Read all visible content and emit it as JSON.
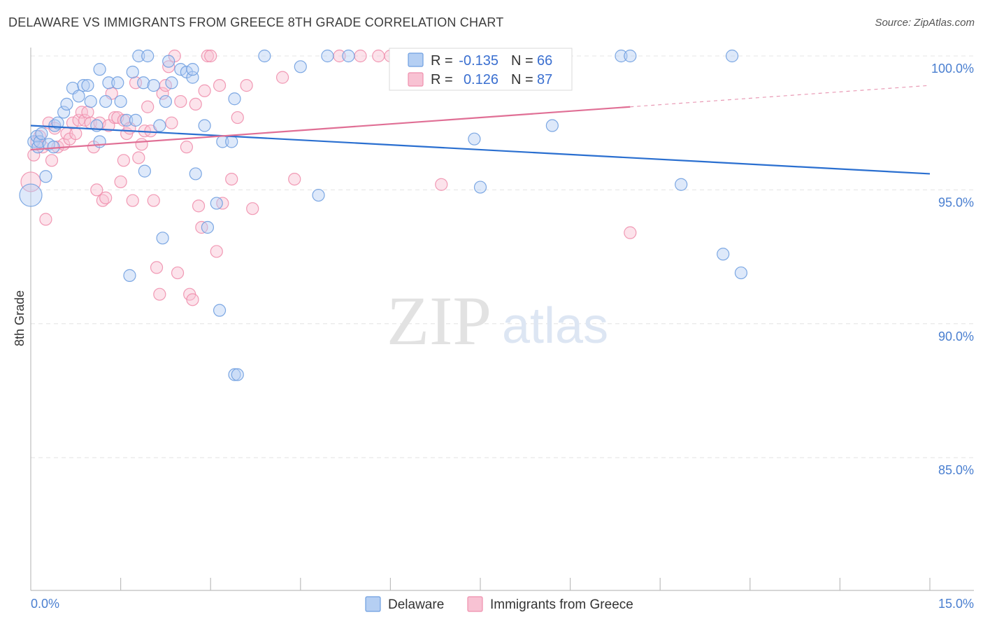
{
  "title": "DELAWARE VS IMMIGRANTS FROM GREECE 8TH GRADE CORRELATION CHART",
  "source": "Source: ZipAtlas.com",
  "watermark": {
    "zip": "ZIP",
    "atlas": "atlas"
  },
  "colors": {
    "delaware": "#6f9fe0",
    "delaware_line": "#2a6fd0",
    "greece": "#ef8fad",
    "greece_line": "#e06f95",
    "tick_label": "#4a7fd0"
  },
  "legend": {
    "items": [
      {
        "r_label": "R =",
        "r_value": "-0.135",
        "n_label": "N =",
        "n_value": "66"
      },
      {
        "r_label": "R =",
        "r_value": "0.126",
        "n_label": "N =",
        "n_value": "87"
      }
    ]
  },
  "chart_data": {
    "type": "scatter",
    "title": "DELAWARE VS IMMIGRANTS FROM GREECE 8TH GRADE CORRELATION CHART",
    "xlabel": "",
    "ylabel": "8th Grade",
    "xlim": [
      0,
      15
    ],
    "ylim": [
      80.5,
      100.5
    ],
    "x_tick_labels": [
      "0.0%",
      "15.0%"
    ],
    "y_ticks": [
      85,
      90,
      95,
      100
    ],
    "y_tick_labels": [
      "85.0%",
      "90.0%",
      "95.0%",
      "100.0%"
    ],
    "grid": true,
    "legend_position": "top-center",
    "series": [
      {
        "name": "Delaware",
        "stats": {
          "R": -0.135,
          "N": 66
        },
        "trend": {
          "x0": 0,
          "y0": 97.4,
          "x1": 15,
          "y1": 95.6
        },
        "points": [
          [
            0.0,
            94.8
          ],
          [
            0.05,
            96.8
          ],
          [
            0.1,
            97.0
          ],
          [
            0.12,
            96.6
          ],
          [
            0.15,
            96.8
          ],
          [
            0.18,
            97.1
          ],
          [
            0.25,
            95.5
          ],
          [
            0.3,
            96.7
          ],
          [
            0.38,
            96.6
          ],
          [
            0.4,
            97.4
          ],
          [
            0.45,
            97.5
          ],
          [
            0.55,
            97.9
          ],
          [
            0.6,
            98.2
          ],
          [
            0.7,
            98.8
          ],
          [
            0.8,
            98.5
          ],
          [
            0.88,
            98.9
          ],
          [
            0.95,
            98.9
          ],
          [
            1.0,
            98.3
          ],
          [
            1.1,
            97.4
          ],
          [
            1.15,
            96.8
          ],
          [
            1.15,
            99.5
          ],
          [
            1.25,
            98.3
          ],
          [
            1.3,
            99.0
          ],
          [
            1.45,
            99.0
          ],
          [
            1.5,
            98.3
          ],
          [
            1.6,
            97.6
          ],
          [
            1.65,
            91.8
          ],
          [
            1.7,
            99.4
          ],
          [
            1.75,
            97.6
          ],
          [
            1.8,
            100.0
          ],
          [
            1.88,
            99.0
          ],
          [
            1.95,
            100.0
          ],
          [
            1.9,
            95.7
          ],
          [
            2.05,
            98.9
          ],
          [
            2.15,
            97.4
          ],
          [
            2.2,
            93.2
          ],
          [
            2.25,
            98.3
          ],
          [
            2.3,
            99.8
          ],
          [
            2.35,
            99.0
          ],
          [
            2.5,
            99.5
          ],
          [
            2.6,
            99.4
          ],
          [
            2.7,
            99.2
          ],
          [
            2.7,
            99.5
          ],
          [
            2.75,
            95.6
          ],
          [
            2.9,
            97.4
          ],
          [
            2.95,
            93.6
          ],
          [
            3.1,
            94.5
          ],
          [
            3.15,
            90.5
          ],
          [
            3.2,
            96.8
          ],
          [
            3.35,
            96.8
          ],
          [
            3.4,
            98.4
          ],
          [
            3.4,
            88.1
          ],
          [
            3.45,
            88.1
          ],
          [
            3.9,
            100.0
          ],
          [
            4.5,
            99.6
          ],
          [
            4.8,
            94.8
          ],
          [
            4.95,
            100.0
          ],
          [
            5.3,
            100.0
          ],
          [
            7.4,
            96.9
          ],
          [
            7.5,
            95.1
          ],
          [
            8.7,
            97.4
          ],
          [
            9.85,
            100.0
          ],
          [
            10.0,
            100.0
          ],
          [
            10.85,
            95.2
          ],
          [
            11.7,
            100.0
          ],
          [
            11.55,
            92.6
          ],
          [
            11.85,
            91.9
          ]
        ]
      },
      {
        "name": "Immigrants from Greece",
        "stats": {
          "R": 0.126,
          "N": 87
        },
        "trend": {
          "x0": 0,
          "y0": 96.5,
          "x1": 10.0,
          "y1": 98.1
        },
        "trend_extension": {
          "x0": 10.0,
          "y0": 98.1,
          "x1": 15,
          "y1": 98.9
        },
        "points": [
          [
            0.0,
            95.3
          ],
          [
            0.05,
            96.3
          ],
          [
            0.1,
            96.8
          ],
          [
            0.15,
            97.0
          ],
          [
            0.2,
            96.6
          ],
          [
            0.25,
            93.9
          ],
          [
            0.3,
            97.5
          ],
          [
            0.35,
            96.1
          ],
          [
            0.4,
            97.3
          ],
          [
            0.45,
            96.6
          ],
          [
            0.55,
            96.7
          ],
          [
            0.6,
            97.1
          ],
          [
            0.65,
            96.9
          ],
          [
            0.7,
            97.5
          ],
          [
            0.75,
            97.1
          ],
          [
            0.8,
            97.6
          ],
          [
            0.85,
            97.9
          ],
          [
            0.9,
            97.6
          ],
          [
            0.95,
            97.9
          ],
          [
            1.0,
            97.5
          ],
          [
            1.05,
            96.6
          ],
          [
            1.1,
            95.0
          ],
          [
            1.15,
            97.5
          ],
          [
            1.2,
            94.6
          ],
          [
            1.25,
            94.7
          ],
          [
            1.3,
            97.4
          ],
          [
            1.35,
            98.6
          ],
          [
            1.4,
            97.7
          ],
          [
            1.45,
            97.7
          ],
          [
            1.5,
            95.3
          ],
          [
            1.55,
            97.6
          ],
          [
            1.55,
            96.1
          ],
          [
            1.6,
            97.1
          ],
          [
            1.65,
            97.3
          ],
          [
            1.7,
            94.6
          ],
          [
            1.75,
            99.0
          ],
          [
            1.8,
            96.2
          ],
          [
            1.85,
            96.7
          ],
          [
            1.9,
            97.2
          ],
          [
            1.95,
            98.1
          ],
          [
            2.0,
            97.2
          ],
          [
            2.05,
            94.6
          ],
          [
            2.1,
            92.1
          ],
          [
            2.15,
            91.1
          ],
          [
            2.2,
            98.6
          ],
          [
            2.25,
            98.9
          ],
          [
            2.3,
            99.6
          ],
          [
            2.35,
            97.5
          ],
          [
            2.4,
            100.0
          ],
          [
            2.45,
            91.9
          ],
          [
            2.5,
            98.3
          ],
          [
            2.6,
            96.6
          ],
          [
            2.65,
            91.1
          ],
          [
            2.7,
            90.9
          ],
          [
            2.75,
            98.2
          ],
          [
            2.8,
            94.4
          ],
          [
            2.85,
            93.6
          ],
          [
            2.9,
            98.7
          ],
          [
            2.95,
            100.0
          ],
          [
            3.0,
            100.0
          ],
          [
            3.1,
            92.7
          ],
          [
            3.15,
            98.9
          ],
          [
            3.2,
            94.5
          ],
          [
            3.35,
            95.4
          ],
          [
            3.45,
            97.7
          ],
          [
            3.6,
            98.9
          ],
          [
            3.7,
            94.3
          ],
          [
            4.2,
            99.2
          ],
          [
            4.4,
            95.4
          ],
          [
            5.15,
            100.0
          ],
          [
            5.5,
            100.0
          ],
          [
            5.8,
            100.0
          ],
          [
            6.0,
            100.0
          ],
          [
            6.25,
            100.0
          ],
          [
            6.5,
            100.0
          ],
          [
            6.85,
            95.2
          ],
          [
            10.0,
            93.4
          ]
        ]
      }
    ]
  },
  "bottom_legend": [
    {
      "label": "Delaware"
    },
    {
      "label": "Immigrants from Greece"
    }
  ]
}
